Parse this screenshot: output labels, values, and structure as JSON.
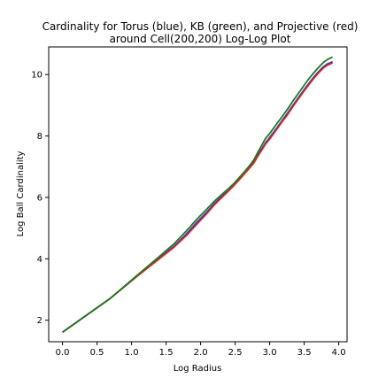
{
  "chart_data": {
    "type": "line",
    "title_lines": [
      "Cardinality for Torus (blue), KB (green), and Projective (red)",
      "around Cell(200,200) Log-Log Plot"
    ],
    "xlabel": "Log Radius",
    "ylabel": "Log Ball Cardinality",
    "xlim": [
      -0.2,
      4.12
    ],
    "ylim": [
      1.3,
      10.9
    ],
    "xticks": [
      0.0,
      0.5,
      1.0,
      1.5,
      2.0,
      2.5,
      3.0,
      3.5,
      4.0
    ],
    "xtick_labels": [
      "0.0",
      "0.5",
      "1.0",
      "1.5",
      "2.0",
      "2.5",
      "3.0",
      "3.5",
      "4.0"
    ],
    "yticks": [
      2,
      4,
      6,
      8,
      10
    ],
    "ytick_labels": [
      "2",
      "4",
      "6",
      "8",
      "10"
    ],
    "grid": false,
    "legend": "none",
    "series": [
      {
        "color": "#1f3bd1",
        "x": [
          0.0,
          0.69,
          1.1,
          1.39,
          1.61,
          1.79,
          1.95,
          2.08,
          2.2,
          2.3,
          2.4,
          2.48,
          2.56,
          2.64,
          2.71,
          2.77,
          2.83,
          2.89,
          2.94,
          3.0,
          3.09,
          3.18,
          3.26,
          3.33,
          3.4,
          3.47,
          3.53,
          3.58,
          3.64,
          3.69,
          3.74,
          3.78,
          3.83,
          3.87,
          3.91
        ],
        "y": [
          1.61,
          2.71,
          3.47,
          4.0,
          4.4,
          4.8,
          5.2,
          5.5,
          5.8,
          6.02,
          6.22,
          6.4,
          6.6,
          6.8,
          6.98,
          7.15,
          7.38,
          7.6,
          7.78,
          7.95,
          8.22,
          8.5,
          8.75,
          8.98,
          9.2,
          9.42,
          9.6,
          9.75,
          9.92,
          10.05,
          10.17,
          10.26,
          10.34,
          10.38,
          10.42
        ]
      },
      {
        "color": "#e02020",
        "x": [
          0.0,
          0.69,
          1.1,
          1.39,
          1.61,
          1.79,
          1.95,
          2.08,
          2.2,
          2.3,
          2.4,
          2.48,
          2.56,
          2.64,
          2.71,
          2.77,
          2.83,
          2.89,
          2.94,
          3.0,
          3.09,
          3.18,
          3.26,
          3.33,
          3.4,
          3.47,
          3.53,
          3.58,
          3.64,
          3.69,
          3.74,
          3.78,
          3.83,
          3.87,
          3.91
        ],
        "y": [
          1.61,
          2.71,
          3.47,
          3.98,
          4.37,
          4.75,
          5.14,
          5.45,
          5.76,
          5.98,
          6.2,
          6.38,
          6.58,
          6.78,
          6.96,
          7.12,
          7.35,
          7.56,
          7.74,
          7.9,
          8.18,
          8.46,
          8.7,
          8.94,
          9.16,
          9.38,
          9.56,
          9.71,
          9.88,
          10.01,
          10.13,
          10.22,
          10.3,
          10.34,
          10.38
        ]
      },
      {
        "color": "#1e7a1e",
        "x": [
          0.0,
          0.69,
          1.1,
          1.39,
          1.61,
          1.79,
          1.95,
          2.08,
          2.2,
          2.3,
          2.4,
          2.48,
          2.56,
          2.64,
          2.71,
          2.77,
          2.83,
          2.89,
          2.94,
          3.0,
          3.09,
          3.18,
          3.26,
          3.33,
          3.4,
          3.47,
          3.53,
          3.58,
          3.64,
          3.69,
          3.74,
          3.78,
          3.83,
          3.87,
          3.91
        ],
        "y": [
          1.61,
          2.71,
          3.5,
          4.05,
          4.48,
          4.9,
          5.3,
          5.6,
          5.88,
          6.08,
          6.28,
          6.45,
          6.65,
          6.85,
          7.04,
          7.22,
          7.48,
          7.72,
          7.92,
          8.08,
          8.36,
          8.63,
          8.88,
          9.12,
          9.34,
          9.56,
          9.75,
          9.9,
          10.06,
          10.19,
          10.31,
          10.4,
          10.48,
          10.53,
          10.57
        ]
      }
    ]
  }
}
